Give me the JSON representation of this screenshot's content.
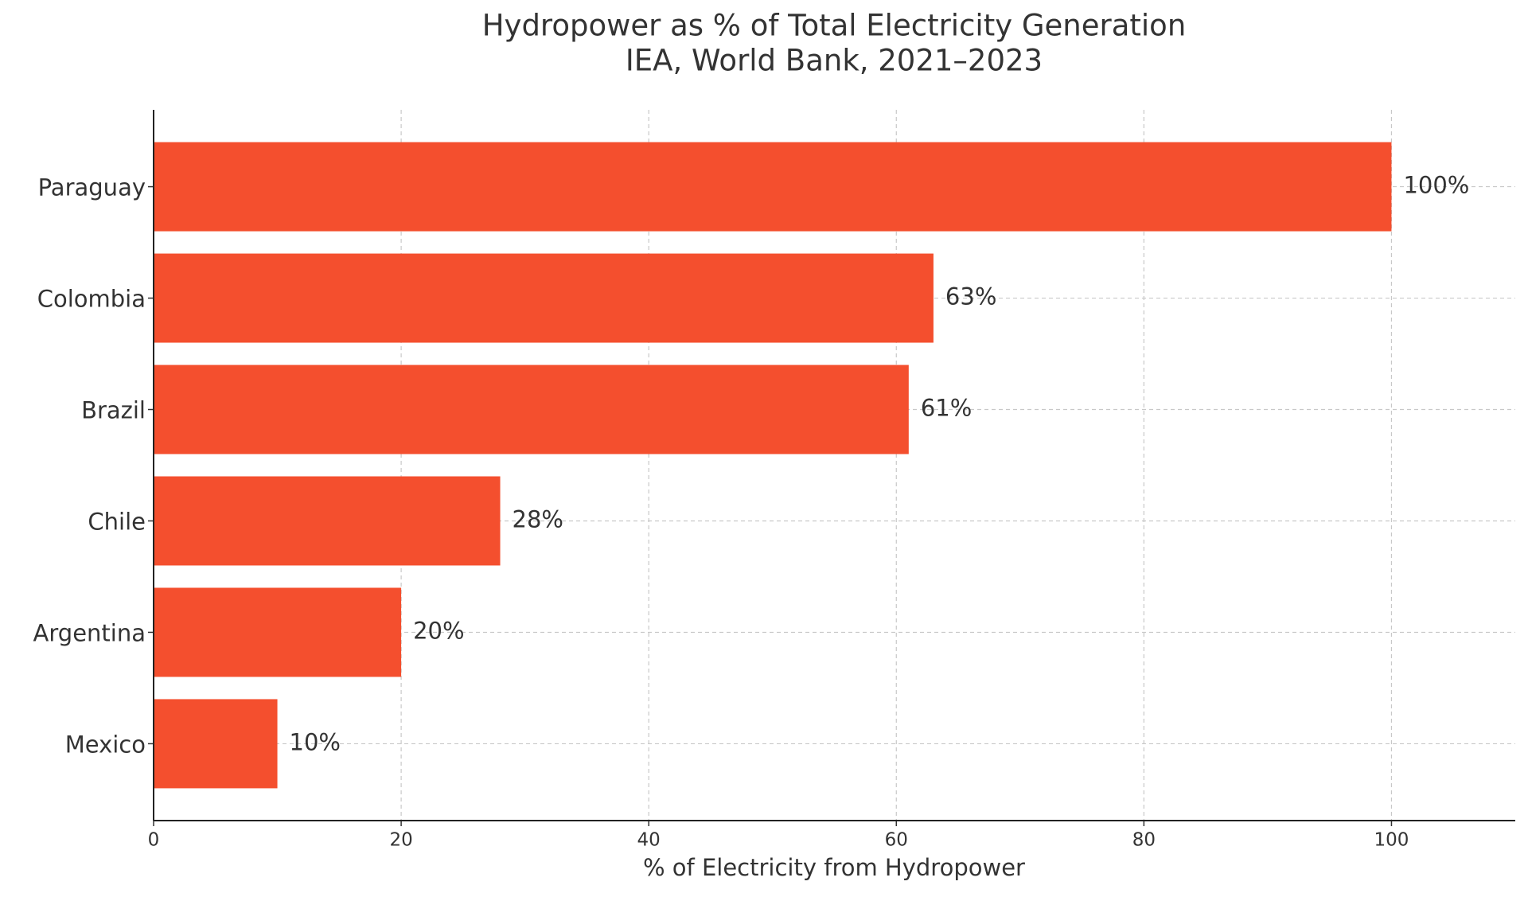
{
  "chart_data": {
    "type": "bar",
    "orientation": "horizontal",
    "title": "Hydropower as % of Total Electricity Generation",
    "subtitle": "IEA, World Bank, 2021–2023",
    "x_label": "% of Electricity from Hydropower",
    "categories": [
      "Paraguay",
      "Colombia",
      "Brazil",
      "Chile",
      "Argentina",
      "Mexico"
    ],
    "values": [
      100,
      63,
      61,
      28,
      20,
      10
    ],
    "value_labels": [
      "100%",
      "63%",
      "61%",
      "28%",
      "20%",
      "10%"
    ],
    "color": "#f44f2e",
    "xlim": [
      0,
      110
    ],
    "xticks": [
      0,
      20,
      40,
      60,
      80,
      100
    ],
    "grid": true
  }
}
